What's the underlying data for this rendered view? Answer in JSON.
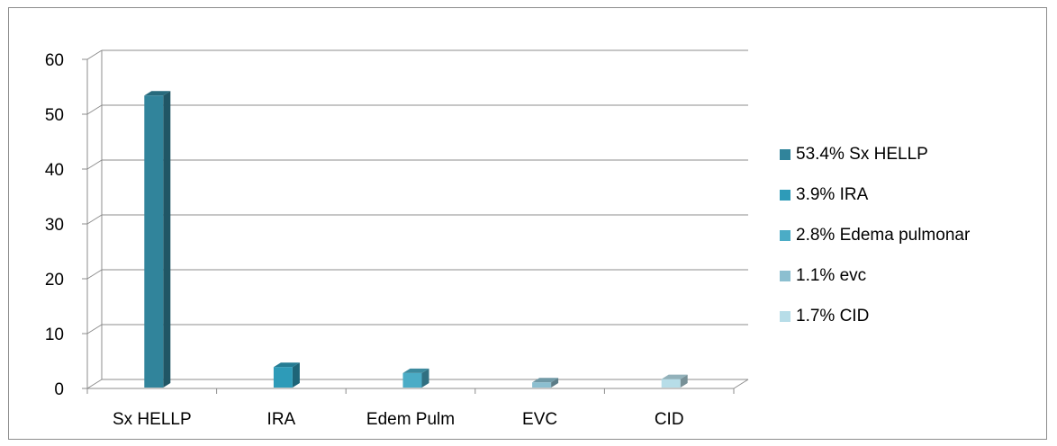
{
  "chart_data": {
    "type": "bar",
    "categories": [
      "Sx HELLP",
      "IRA",
      "Edem Pulm",
      "EVC",
      "CID"
    ],
    "values": [
      53.4,
      3.9,
      2.8,
      1.1,
      1.7
    ],
    "colors": [
      "#31849b",
      "#2e9bb8",
      "#4bacc6",
      "#8cbfd0",
      "#b7dde8"
    ],
    "ylim": [
      0,
      60
    ],
    "yticks": [
      "0",
      "10",
      "20",
      "30",
      "40",
      "50",
      "60"
    ],
    "grid": true,
    "legend_position": "right",
    "legend": [
      {
        "label": "53.4% Sx HELLP",
        "color": "#31849b"
      },
      {
        "label": "3.9% IRA",
        "color": "#2e9bb8"
      },
      {
        "label": "2.8% Edema pulmonar",
        "color": "#4bacc6"
      },
      {
        "label": "1.1% evc",
        "color": "#8cbfd0"
      },
      {
        "label": "1.7% CID",
        "color": "#b7dde8"
      }
    ]
  }
}
